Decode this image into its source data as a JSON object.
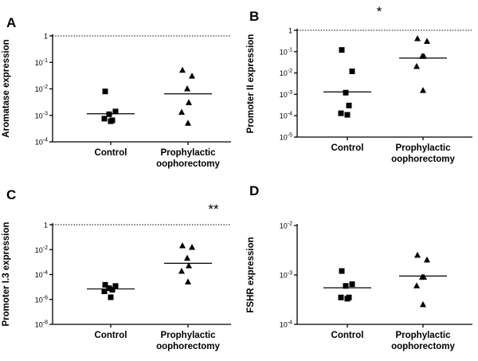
{
  "chart_data": [
    {
      "panel": "A",
      "type": "scatter",
      "scale": "log",
      "ylabel": "Aromatase expression",
      "y_ticks": [
        {
          "value": 0.0001,
          "base": "10",
          "exp": "-4"
        },
        {
          "value": 0.001,
          "base": "10",
          "exp": "-3"
        },
        {
          "value": 0.01,
          "base": "10",
          "exp": "-2"
        },
        {
          "value": 0.1,
          "base": "10",
          "exp": "-1"
        },
        {
          "value": 1,
          "base": "1",
          "exp": ""
        }
      ],
      "ylim": [
        0.0001,
        1
      ],
      "reference_line": 1,
      "significance": "",
      "groups": [
        {
          "label_lines": [
            "Control"
          ],
          "marker": "square",
          "values": [
            0.008,
            0.0014,
            0.0011,
            0.00065,
            0.00075,
            0.0006
          ],
          "median": 0.00115
        },
        {
          "label_lines": [
            "Prophylactic",
            "oophorectomy"
          ],
          "marker": "triangle",
          "values": [
            0.05,
            0.03,
            0.01,
            0.003,
            0.0013,
            0.0005
          ],
          "median": 0.0065
        }
      ]
    },
    {
      "panel": "B",
      "type": "scatter",
      "scale": "log",
      "ylabel": "Promoter II expression",
      "y_ticks": [
        {
          "value": 1e-05,
          "base": "10",
          "exp": "-5"
        },
        {
          "value": 0.0001,
          "base": "10",
          "exp": "-4"
        },
        {
          "value": 0.001,
          "base": "10",
          "exp": "-3"
        },
        {
          "value": 0.01,
          "base": "10",
          "exp": "-2"
        },
        {
          "value": 0.1,
          "base": "10",
          "exp": "-1"
        },
        {
          "value": 1,
          "base": "1",
          "exp": ""
        }
      ],
      "ylim": [
        1e-05,
        1
      ],
      "reference_line": 1,
      "significance": "*",
      "groups": [
        {
          "label_lines": [
            "Control"
          ],
          "marker": "square",
          "values": [
            0.12,
            0.012,
            0.0012,
            0.0003,
            0.00013,
            0.00011
          ],
          "median": 0.0013
        },
        {
          "label_lines": [
            "Prophylactic",
            "oophorectomy"
          ],
          "marker": "triangle",
          "values": [
            0.4,
            0.3,
            0.06,
            0.06,
            0.02,
            0.0015
          ],
          "median": 0.05
        }
      ]
    },
    {
      "panel": "C",
      "type": "scatter",
      "scale": "log",
      "ylabel": "Promoter I.3 expression",
      "y_ticks": [
        {
          "value": 1e-08,
          "base": "10",
          "exp": "-8"
        },
        {
          "value": 1e-06,
          "base": "10",
          "exp": "-6"
        },
        {
          "value": 0.0001,
          "base": "10",
          "exp": "-4"
        },
        {
          "value": 0.01,
          "base": "10",
          "exp": "-2"
        },
        {
          "value": 1,
          "base": "1",
          "exp": ""
        }
      ],
      "ylim": [
        1e-08,
        1
      ],
      "reference_line": 1,
      "significance": "**",
      "groups": [
        {
          "label_lines": [
            "Control"
          ],
          "marker": "square",
          "values": [
            1.5e-05,
            1.2e-05,
            8e-06,
            6e-06,
            4.5e-06,
            1.5e-06
          ],
          "median": 7e-06
        },
        {
          "label_lines": [
            "Prophylactic",
            "oophorectomy"
          ],
          "marker": "triangle",
          "values": [
            0.02,
            0.015,
            0.002,
            0.0005,
            0.00018,
            2.5e-05
          ],
          "median": 0.0008
        }
      ]
    },
    {
      "panel": "D",
      "type": "scatter",
      "scale": "log",
      "ylabel": "FSHR expression",
      "y_ticks": [
        {
          "value": 0.0001,
          "base": "10",
          "exp": "-4"
        },
        {
          "value": 0.001,
          "base": "10",
          "exp": "-3"
        },
        {
          "value": 0.01,
          "base": "10",
          "exp": "-2"
        }
      ],
      "ylim": [
        0.0001,
        0.01
      ],
      "reference_line": null,
      "significance": "",
      "groups": [
        {
          "label_lines": [
            "Control"
          ],
          "marker": "square",
          "values": [
            0.0012,
            0.00065,
            0.0006,
            0.00035,
            0.00035,
            0.00033
          ],
          "median": 0.00055
        },
        {
          "label_lines": [
            "Prophylactic",
            "oophorectomy"
          ],
          "marker": "triangle",
          "values": [
            0.0025,
            0.002,
            0.0009,
            0.0009,
            0.0006,
            0.00025
          ],
          "median": 0.00095
        }
      ]
    }
  ]
}
